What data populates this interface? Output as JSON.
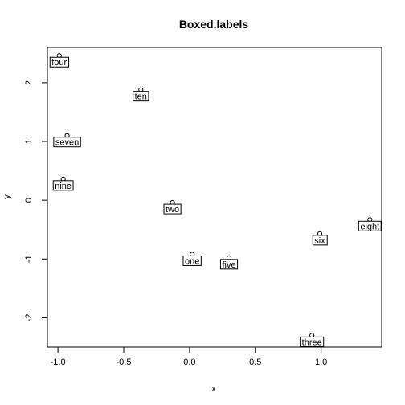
{
  "chart_data": {
    "type": "scatter",
    "title": "Boxed.labels",
    "xlabel": "x",
    "ylabel": "y",
    "xlim": [
      -1.08,
      1.46
    ],
    "ylim": [
      -2.5,
      2.6
    ],
    "xticks": [
      -1.0,
      -0.5,
      0.0,
      0.5,
      1.0
    ],
    "xtick_labels": [
      "-1.0",
      "-0.5",
      "0.0",
      "0.5",
      "1.0"
    ],
    "yticks": [
      -2,
      -1,
      0,
      1,
      2
    ],
    "ytick_labels": [
      "-2",
      "-1",
      "0",
      "1",
      "2"
    ],
    "grid": false,
    "points": [
      {
        "label": "one",
        "x": 0.02,
        "y": -0.92
      },
      {
        "label": "two",
        "x": -0.13,
        "y": -0.04
      },
      {
        "label": "three",
        "x": 0.93,
        "y": -2.3
      },
      {
        "label": "four",
        "x": -0.99,
        "y": 2.46
      },
      {
        "label": "five",
        "x": 0.3,
        "y": -0.98
      },
      {
        "label": "six",
        "x": 0.99,
        "y": -0.57
      },
      {
        "label": "seven",
        "x": -0.93,
        "y": 1.1
      },
      {
        "label": "eight",
        "x": 1.37,
        "y": -0.33
      },
      {
        "label": "nine",
        "x": -0.96,
        "y": 0.36
      },
      {
        "label": "ten",
        "x": -0.37,
        "y": 1.88
      }
    ]
  }
}
